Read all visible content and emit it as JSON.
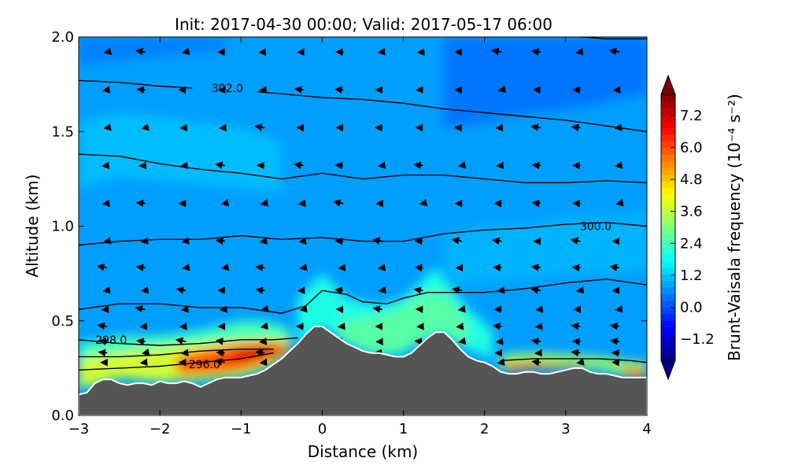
{
  "chart_data": {
    "type": "heatmap",
    "title": "Init: 2017-04-30 00:00; Valid: 2017-05-17 06:00",
    "xlabel": "Distance (km)",
    "ylabel": "Altitude (km)",
    "xlim": [
      -3,
      4
    ],
    "ylim": [
      0,
      2
    ],
    "xticks": [
      -3,
      -2,
      -1,
      0,
      1,
      2,
      3,
      4
    ],
    "xtick_labels": [
      "−3",
      "−2",
      "−1",
      "0",
      "1",
      "2",
      "3",
      "4"
    ],
    "yticks": [
      0,
      0.5,
      1,
      1.5,
      2
    ],
    "ytick_labels": [
      "0.0",
      "0.5",
      "1.0",
      "1.5",
      "2.0"
    ],
    "colorbar": {
      "label": "Brunt-Vaisala frequency (10⁻⁴ s⁻²)",
      "range": [
        -2.0,
        8.0
      ],
      "ticks": [
        -1.2,
        0.0,
        1.2,
        2.4,
        3.6,
        4.8,
        6.0,
        7.2
      ],
      "tick_labels": [
        "−1.2",
        "0.0",
        "1.2",
        "2.4",
        "3.6",
        "4.8",
        "6.0",
        "7.2"
      ],
      "extend": "both",
      "colormap": "jet"
    },
    "background_value": 0.8,
    "field_features": [
      {
        "x": [
          -3.0,
          -2.5,
          -2.0,
          -1.5,
          -1.0,
          -0.7,
          -0.4
        ],
        "y_bottom": [
          0.14,
          0.2,
          0.18,
          0.19,
          0.21,
          0.25,
          0.33
        ],
        "y_top": [
          0.38,
          0.42,
          0.42,
          0.45,
          0.5,
          0.5,
          0.46
        ],
        "value": 2.4
      },
      {
        "x": [
          -3.0,
          -2.5,
          -2.0,
          -1.5,
          -1.0,
          -0.7,
          -0.4
        ],
        "y_bottom": [
          0.14,
          0.2,
          0.18,
          0.19,
          0.21,
          0.25,
          0.33
        ],
        "y_top": [
          0.3,
          0.33,
          0.36,
          0.38,
          0.4,
          0.41,
          0.4
        ],
        "value": 3.8
      },
      {
        "x": [
          -1.8,
          -1.4,
          -1.0,
          -0.7,
          -0.4
        ],
        "y_bottom": [
          0.22,
          0.22,
          0.24,
          0.28,
          0.34
        ],
        "y_top": [
          0.31,
          0.35,
          0.38,
          0.39,
          0.37
        ],
        "value": 6.0
      },
      {
        "x": [
          -1.1,
          -0.8,
          -0.5,
          -0.35
        ],
        "y_bottom": [
          0.27,
          0.3,
          0.33,
          0.36
        ],
        "y_top": [
          0.35,
          0.37,
          0.37,
          0.36
        ],
        "value": 7.0
      },
      {
        "x": [
          -0.3,
          0.0,
          0.3,
          0.7,
          1.0,
          1.4,
          1.8,
          2.1
        ],
        "y_bottom": [
          0.38,
          0.47,
          0.4,
          0.32,
          0.33,
          0.44,
          0.35,
          0.3
        ],
        "y_top": [
          0.62,
          0.75,
          0.62,
          0.58,
          0.62,
          0.78,
          0.56,
          0.45
        ],
        "value": 2.0
      },
      {
        "x": [
          0.2,
          0.6,
          0.9,
          1.2,
          1.5,
          1.8
        ],
        "y_bottom": [
          0.4,
          0.32,
          0.32,
          0.38,
          0.44,
          0.35
        ],
        "y_top": [
          0.5,
          0.52,
          0.56,
          0.64,
          0.66,
          0.5
        ],
        "value": 2.6
      },
      {
        "x": [
          2.2,
          2.6,
          3.0,
          3.4,
          3.7,
          4.0
        ],
        "y_bottom": [
          0.25,
          0.26,
          0.26,
          0.25,
          0.22,
          0.21
        ],
        "y_top": [
          0.32,
          0.33,
          0.32,
          0.31,
          0.29,
          0.28
        ],
        "value": 3.4
      },
      {
        "x": [
          2.25,
          2.6,
          2.9,
          3.2
        ],
        "y_bottom": [
          0.23,
          0.25,
          0.25,
          0.26
        ],
        "y_top": [
          0.27,
          0.28,
          0.27,
          0.27
        ],
        "value": 6.6
      },
      {
        "x": [
          3.7,
          3.85,
          4.0
        ],
        "y_bottom": [
          0.21,
          0.2,
          0.2
        ],
        "y_top": [
          0.24,
          0.24,
          0.24
        ],
        "value": 6.6
      },
      {
        "x": [
          -3.0,
          -2.5,
          -2.0,
          -1.5,
          -1.0,
          -0.5
        ],
        "y_bottom": [
          1.2,
          1.26,
          1.24,
          1.22,
          1.2,
          1.18
        ],
        "y_top": [
          1.55,
          1.6,
          1.58,
          1.55,
          1.52,
          1.45
        ],
        "value": 1.1
      },
      {
        "x": [
          1.5,
          2.0,
          2.5,
          3.0,
          3.5,
          4.0
        ],
        "y_bottom": [
          0.68,
          0.7,
          0.72,
          0.74,
          0.75,
          0.76
        ],
        "y_top": [
          0.95,
          1.0,
          1.02,
          1.05,
          1.05,
          1.08
        ],
        "value": 1.0
      },
      {
        "x": [
          -3.0,
          -2.5,
          -2.0,
          -1.5,
          -1.2
        ],
        "y_bottom": [
          1.85,
          1.88,
          1.9,
          1.92,
          1.93
        ],
        "y_top": [
          2.0,
          2.0,
          2.0,
          2.0,
          2.0
        ],
        "value": 0.5
      },
      {
        "x": [
          1.5,
          2.0,
          2.5,
          3.0,
          3.5,
          4.0
        ],
        "y_bottom": [
          1.52,
          1.55,
          1.6,
          1.62,
          1.66,
          1.7
        ],
        "y_top": [
          2.0,
          2.0,
          2.0,
          2.0,
          2.0,
          2.0
        ],
        "value": 0.4
      }
    ],
    "terrain": {
      "x": [
        -3.0,
        -2.9,
        -2.8,
        -2.7,
        -2.6,
        -2.5,
        -2.4,
        -2.3,
        -2.2,
        -2.1,
        -2.0,
        -1.9,
        -1.8,
        -1.7,
        -1.6,
        -1.5,
        -1.4,
        -1.3,
        -1.2,
        -1.1,
        -1.0,
        -0.9,
        -0.8,
        -0.7,
        -0.6,
        -0.5,
        -0.4,
        -0.3,
        -0.2,
        -0.1,
        0.0,
        0.1,
        0.2,
        0.3,
        0.4,
        0.5,
        0.6,
        0.7,
        0.8,
        0.9,
        1.0,
        1.1,
        1.2,
        1.3,
        1.4,
        1.5,
        1.6,
        1.7,
        1.8,
        1.9,
        2.0,
        2.1,
        2.2,
        2.3,
        2.4,
        2.5,
        2.6,
        2.7,
        2.8,
        2.9,
        3.0,
        3.1,
        3.2,
        3.3,
        3.4,
        3.5,
        3.6,
        3.7,
        3.8,
        3.9,
        4.0
      ],
      "y": [
        0.11,
        0.12,
        0.17,
        0.19,
        0.19,
        0.17,
        0.16,
        0.17,
        0.17,
        0.16,
        0.18,
        0.17,
        0.17,
        0.18,
        0.17,
        0.15,
        0.17,
        0.19,
        0.2,
        0.2,
        0.2,
        0.21,
        0.22,
        0.24,
        0.27,
        0.3,
        0.34,
        0.38,
        0.43,
        0.47,
        0.47,
        0.44,
        0.41,
        0.38,
        0.36,
        0.34,
        0.33,
        0.33,
        0.32,
        0.31,
        0.31,
        0.33,
        0.37,
        0.41,
        0.44,
        0.44,
        0.4,
        0.35,
        0.31,
        0.29,
        0.28,
        0.26,
        0.23,
        0.22,
        0.22,
        0.23,
        0.23,
        0.22,
        0.22,
        0.23,
        0.24,
        0.25,
        0.25,
        0.23,
        0.22,
        0.22,
        0.21,
        0.2,
        0.2,
        0.2,
        0.2
      ]
    },
    "contours": [
      {
        "x": [
          -3.0,
          -2.5,
          -2.0,
          -1.5,
          -1.0,
          -0.6
        ],
        "y": [
          0.24,
          0.25,
          0.26,
          0.28,
          0.3,
          0.33
        ]
      },
      {
        "x": [
          -3.0,
          -2.5,
          -2.0,
          -1.5,
          -1.0,
          -0.6
        ],
        "y": [
          0.31,
          0.31,
          0.32,
          0.34,
          0.35,
          0.35
        ]
      },
      {
        "x": [
          -3.0,
          -2.5,
          -2.0,
          -1.5,
          -1.0,
          -0.6,
          -0.3
        ],
        "y": [
          0.4,
          0.38,
          0.37,
          0.38,
          0.4,
          0.4,
          0.41
        ]
      },
      {
        "x": [
          2.2,
          2.6,
          3.0,
          3.4,
          3.8,
          4.0
        ],
        "y": [
          0.29,
          0.3,
          0.3,
          0.3,
          0.29,
          0.28
        ]
      },
      {
        "x": [
          -3.0,
          -2.5,
          -2.0,
          -1.5,
          -1.0,
          -0.5,
          -0.2,
          0.0,
          0.3,
          0.5,
          0.8,
          1.0,
          1.3,
          1.5,
          2.0,
          2.5,
          3.0,
          3.5,
          4.0
        ],
        "y": [
          0.56,
          0.59,
          0.59,
          0.57,
          0.57,
          0.54,
          0.58,
          0.66,
          0.64,
          0.6,
          0.59,
          0.62,
          0.65,
          0.65,
          0.65,
          0.67,
          0.7,
          0.72,
          0.69
        ]
      },
      {
        "x": [
          -3.0,
          -2.5,
          -2.0,
          -1.5,
          -1.0,
          -0.5,
          0.0,
          0.5,
          1.0,
          1.5,
          2.0,
          2.5,
          3.0,
          3.5,
          4.0
        ],
        "y": [
          0.9,
          0.92,
          0.93,
          0.93,
          0.95,
          0.93,
          0.94,
          0.92,
          0.92,
          0.96,
          0.98,
          0.99,
          1.01,
          1.02,
          1.0
        ]
      },
      {
        "x": [
          -3.0,
          -2.5,
          -2.0,
          -1.5,
          -1.0,
          -0.5,
          0.0,
          0.5,
          1.0,
          1.5,
          2.0,
          2.5,
          3.0,
          3.5,
          4.0
        ],
        "y": [
          1.38,
          1.37,
          1.33,
          1.3,
          1.28,
          1.25,
          1.28,
          1.25,
          1.27,
          1.27,
          1.25,
          1.23,
          1.23,
          1.24,
          1.23
        ]
      },
      {
        "x": [
          -3.0,
          -2.5,
          -2.0,
          -1.6
        ],
        "y": [
          1.77,
          1.76,
          1.74,
          1.73
        ]
      },
      {
        "x": [
          -0.8,
          -0.5,
          0.0,
          0.5,
          1.0,
          1.5,
          2.0,
          2.5,
          3.0,
          3.5,
          4.0
        ],
        "y": [
          1.71,
          1.7,
          1.68,
          1.67,
          1.65,
          1.62,
          1.6,
          1.58,
          1.56,
          1.53,
          1.5
        ]
      },
      {
        "x": [
          3.2,
          3.5,
          4.0
        ],
        "y": [
          2.0,
          1.99,
          1.99
        ]
      }
    ],
    "contour_labels": [
      {
        "text": "302.0",
        "x": -1.17,
        "y": 1.73
      },
      {
        "text": "300.0",
        "x": 3.37,
        "y": 1.0
      },
      {
        "text": "298.0",
        "x": -2.6,
        "y": 0.4
      },
      {
        "text": "296.0",
        "x": -1.45,
        "y": 0.27
      }
    ],
    "wind_vectors": {
      "x": [
        -2.65,
        -2.18,
        -1.68,
        -1.2,
        -0.71,
        -0.23,
        0.26,
        0.74,
        1.24,
        1.72,
        2.21,
        2.69,
        3.18,
        3.66
      ],
      "y": [
        1.92,
        1.72,
        1.52,
        1.32,
        1.12,
        0.92,
        0.78,
        0.66,
        0.56,
        0.47,
        0.39,
        0.33,
        0.28
      ]
    }
  }
}
